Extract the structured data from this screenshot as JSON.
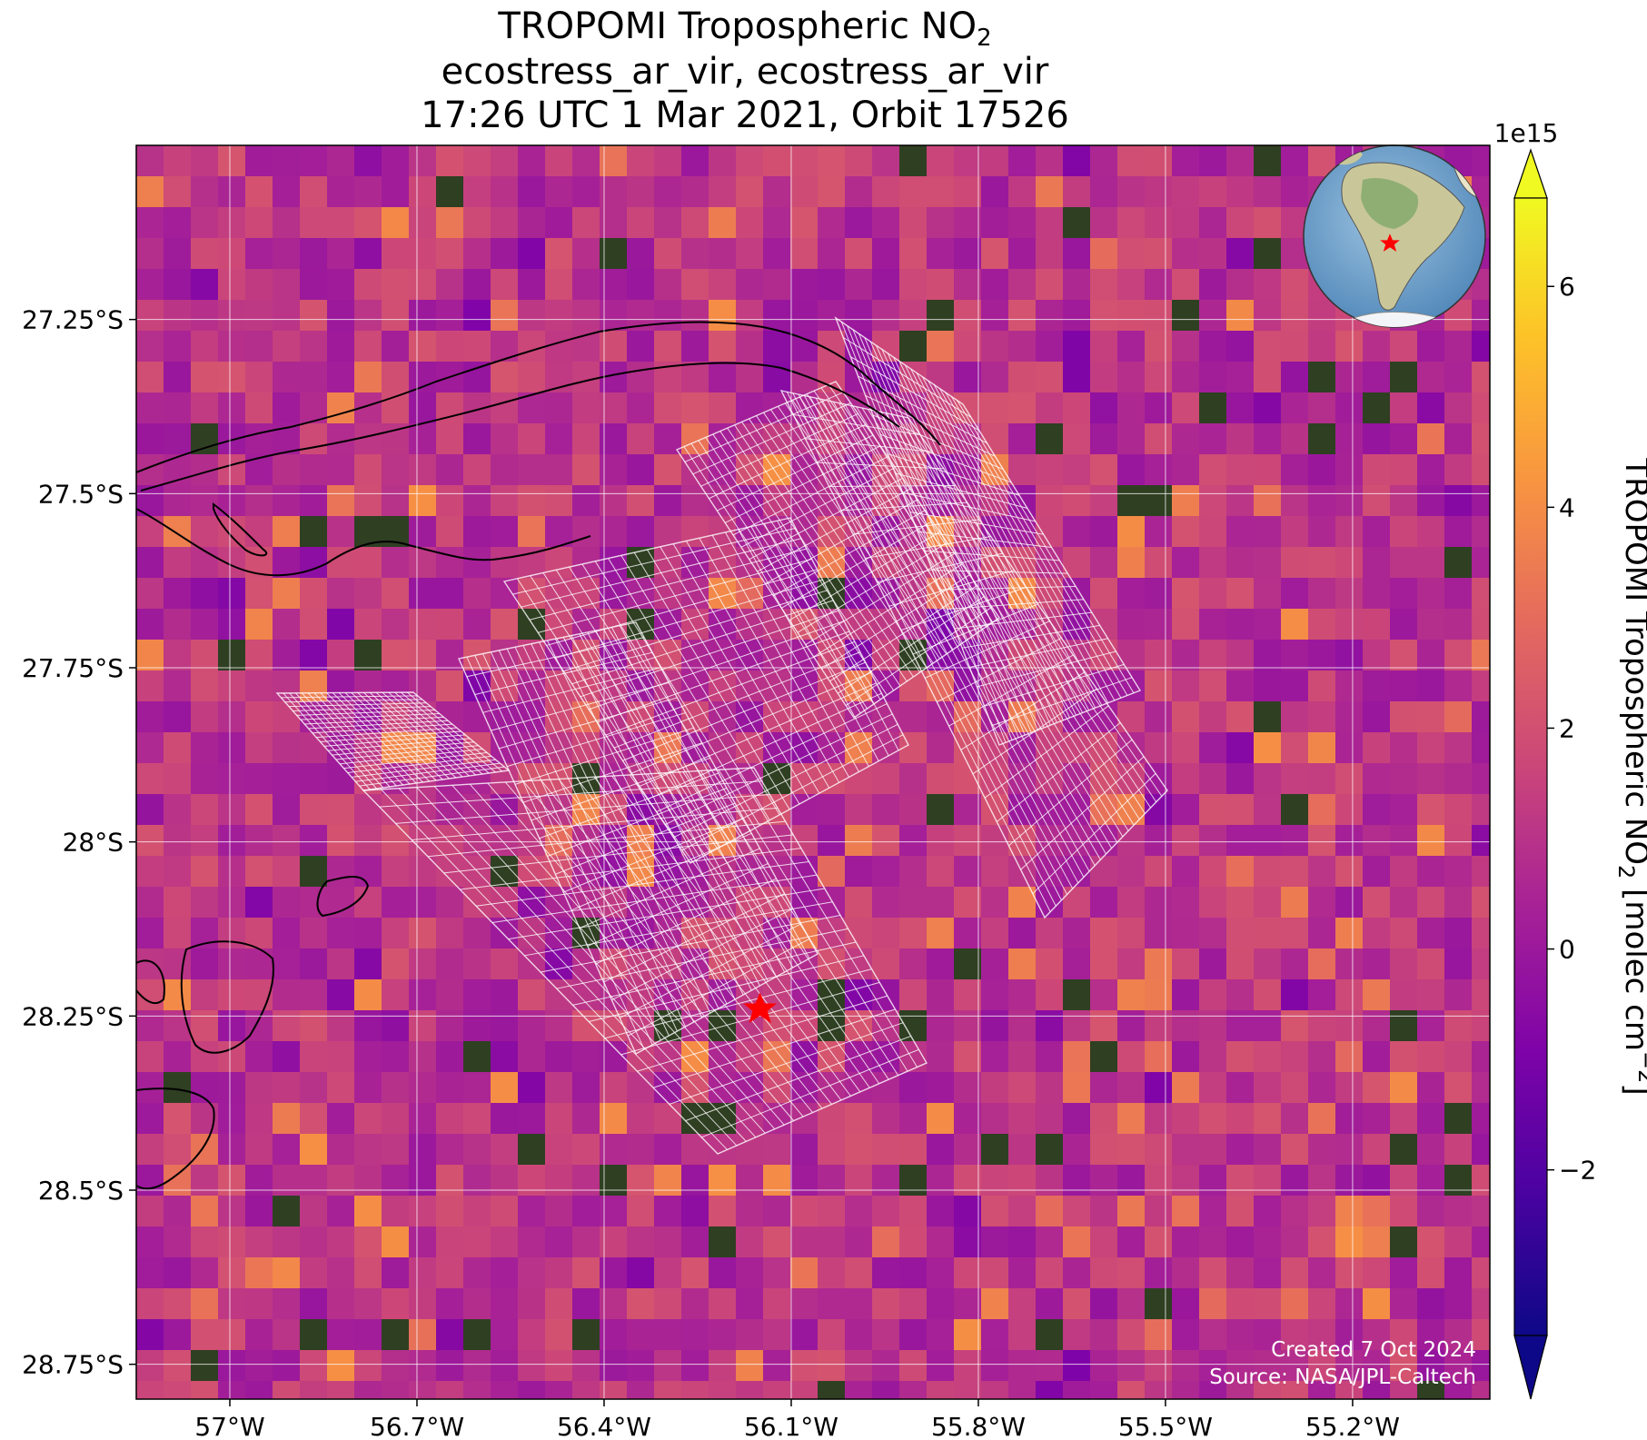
{
  "title": {
    "line1_prefix": "TROPOMI Tropospheric NO",
    "line1_sub": "2",
    "line2": "ecostress_ar_vir, ecostress_ar_vir",
    "line3": "17:26 UTC 1 Mar 2021, Orbit 17526"
  },
  "map": {
    "lat_labels": [
      "27.25°S",
      "27.5°S",
      "27.75°S",
      "28°S",
      "28.25°S",
      "28.5°S",
      "28.75°S"
    ],
    "lat_values": [
      -27.25,
      -27.5,
      -27.75,
      -28.0,
      -28.25,
      -28.5,
      -28.75
    ],
    "lon_labels": [
      "57°W",
      "56.7°W",
      "56.4°W",
      "56.1°W",
      "55.8°W",
      "55.5°W",
      "55.2°W"
    ],
    "lon_values": [
      -57.0,
      -56.7,
      -56.4,
      -56.1,
      -55.8,
      -55.5,
      -55.2
    ],
    "extent": {
      "lon_min": -57.15,
      "lon_max": -54.98,
      "lat_min": -28.8,
      "lat_max": -27.0
    },
    "target_marker": {
      "symbol": "red-star",
      "lon": -56.15,
      "lat": -28.24
    },
    "credit_line1": "Created 7 Oct 2024",
    "credit_line2": "Source: NASA/JPL-Caltech",
    "inset": "globe-south-america-with-red-star",
    "colors": {
      "star": "#ff0000",
      "coast": "#000000",
      "grid": "#ffffff"
    }
  },
  "colorbar": {
    "exponent_label": "1e15",
    "ticks": [
      "6",
      "4",
      "2",
      "0",
      "−2"
    ],
    "tick_values": [
      6,
      4,
      2,
      0,
      -2
    ],
    "range": [
      -3.5,
      6.8
    ],
    "label_prefix": "TROPOMI Tropospheric NO",
    "label_sub": "2",
    "label_suffix": " [molec cm",
    "label_sup": "−2",
    "label_end": "]",
    "colormap": "plasma",
    "extend": "both"
  }
}
